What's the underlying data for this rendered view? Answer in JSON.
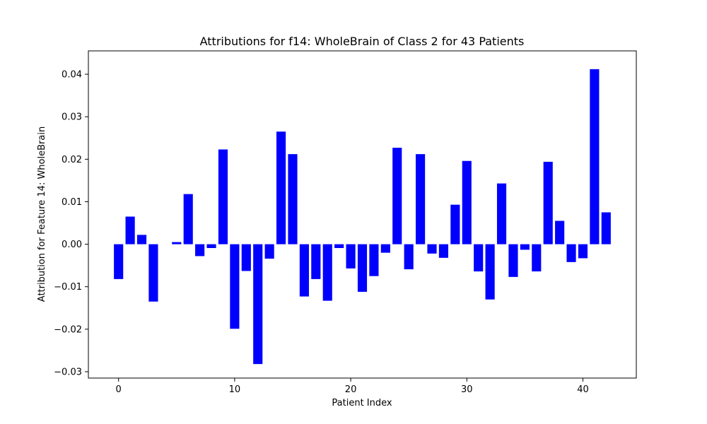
{
  "chart_data": {
    "type": "bar",
    "title": "Attributions for f14: WholeBrain of Class 2 for 43 Patients",
    "xlabel": "Patient Index",
    "ylabel": "Attribution for Feature 14: WholeBrain",
    "xlim": [
      -2.6,
      44.6
    ],
    "ylim": [
      -0.0315,
      0.0455
    ],
    "bar_color": "#0000ff",
    "xticks": [
      0,
      10,
      20,
      30,
      40
    ],
    "yticks": [
      -0.03,
      -0.02,
      -0.01,
      0.0,
      0.01,
      0.02,
      0.03,
      0.04
    ],
    "xtick_labels": [
      "0",
      "10",
      "20",
      "30",
      "40"
    ],
    "ytick_labels": [
      "−0.03",
      "−0.02",
      "−0.01",
      "0.00",
      "0.01",
      "0.02",
      "0.03",
      "0.04"
    ],
    "categories": [
      0,
      1,
      2,
      3,
      4,
      5,
      6,
      7,
      8,
      9,
      10,
      11,
      12,
      13,
      14,
      15,
      16,
      17,
      18,
      19,
      20,
      21,
      22,
      23,
      24,
      25,
      26,
      27,
      28,
      29,
      30,
      31,
      32,
      33,
      34,
      35,
      36,
      37,
      38,
      39,
      40,
      41,
      42
    ],
    "values": [
      -0.0082,
      0.0065,
      0.0022,
      -0.0135,
      0.0,
      0.0005,
      0.0118,
      -0.0028,
      -0.0009,
      0.0223,
      -0.0199,
      -0.0063,
      -0.0282,
      -0.0034,
      0.0265,
      0.0212,
      -0.0123,
      -0.0082,
      -0.0133,
      -0.0009,
      -0.0057,
      -0.0112,
      -0.0075,
      -0.002,
      0.0227,
      -0.0059,
      0.0212,
      -0.0022,
      -0.0032,
      0.0093,
      0.0196,
      -0.0064,
      -0.013,
      0.0143,
      -0.0077,
      -0.0013,
      -0.0064,
      0.0194,
      0.0055,
      -0.0042,
      -0.0033,
      0.0412,
      0.0075
    ]
  }
}
